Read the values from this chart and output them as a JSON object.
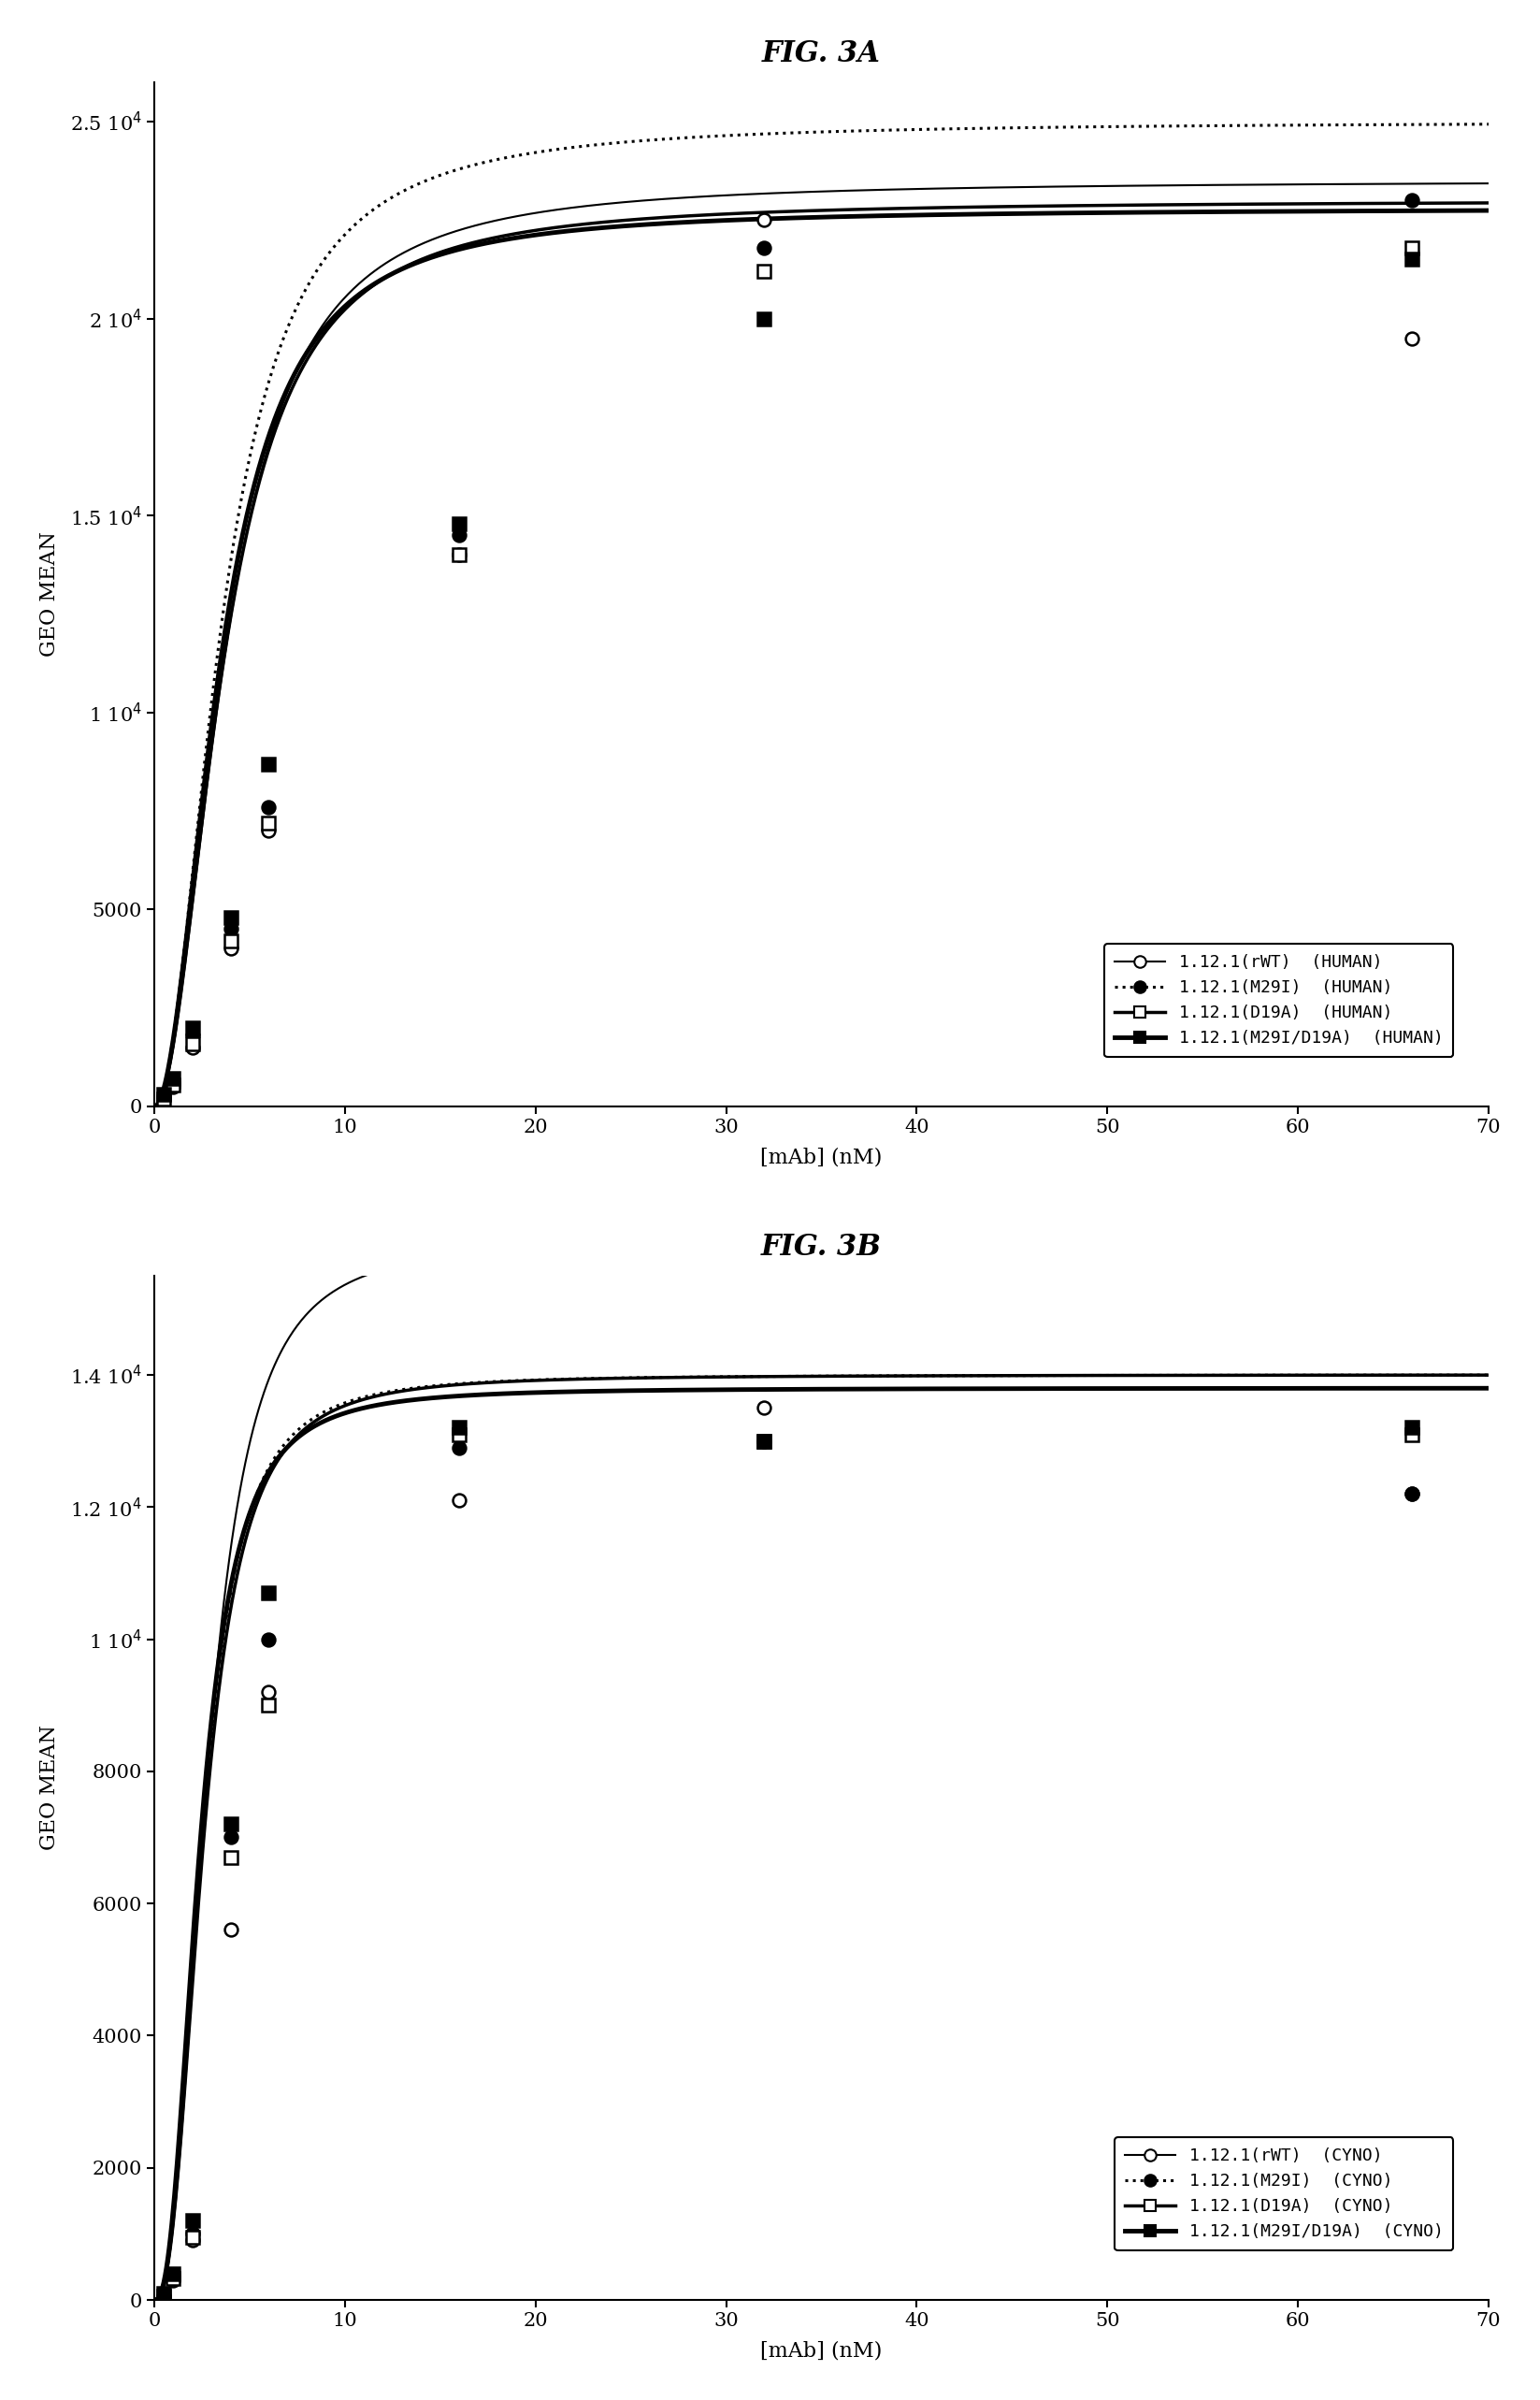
{
  "fig_title_A": "FIG. 3A",
  "fig_title_B": "FIG. 3B",
  "xlabel": "[mAb] (nM)",
  "ylabel": "GEO MEAN",
  "background_color": "#ffffff",
  "panel_A": {
    "xlim": [
      0,
      70
    ],
    "ylim": [
      0,
      26000
    ],
    "yticks": [
      0,
      5000,
      10000,
      15000,
      20000,
      25000
    ],
    "ytick_labels": [
      "0",
      "5000",
      "1 10$^4$",
      "1.5 10$^4$",
      "2 10$^4$",
      "2.5 10$^4$"
    ],
    "xticks": [
      0,
      10,
      20,
      30,
      40,
      50,
      60,
      70
    ],
    "series": [
      {
        "label": "1.12.1(rWT)  (HUMAN)",
        "linestyle": "solid",
        "linewidth": 1.5,
        "marker": "o",
        "markerfacecolor": "white",
        "markeredgecolor": "black",
        "color": "black",
        "Bmax": 23500,
        "Kd": 3.8,
        "n": 2.0,
        "data_x": [
          0.5,
          1.0,
          2.0,
          4.0,
          6.0,
          16.0,
          32.0,
          66.0
        ],
        "data_y": [
          200,
          500,
          1500,
          4000,
          7000,
          14000,
          22500,
          19500
        ]
      },
      {
        "label": "1.12.1(M29I)  (HUMAN)",
        "linestyle": "dotted",
        "linewidth": 2.2,
        "marker": "o",
        "markerfacecolor": "black",
        "markeredgecolor": "black",
        "color": "black",
        "Bmax": 25000,
        "Kd": 3.6,
        "n": 2.0,
        "data_x": [
          0.5,
          1.0,
          2.0,
          4.0,
          6.0,
          16.0,
          32.0,
          66.0
        ],
        "data_y": [
          250,
          600,
          1800,
          4500,
          7600,
          14500,
          21800,
          23000
        ]
      },
      {
        "label": "1.12.1(D19A)  (HUMAN)",
        "linestyle": "solid",
        "linewidth": 2.5,
        "marker": "s",
        "markerfacecolor": "white",
        "markeredgecolor": "black",
        "color": "black",
        "Bmax": 23000,
        "Kd": 3.7,
        "n": 2.0,
        "data_x": [
          0.5,
          1.0,
          2.0,
          4.0,
          6.0,
          16.0,
          32.0,
          66.0
        ],
        "data_y": [
          200,
          550,
          1600,
          4200,
          7200,
          14000,
          21200,
          21800
        ]
      },
      {
        "label": "1.12.1(M29I/D19A)  (HUMAN)",
        "linestyle": "solid",
        "linewidth": 3.5,
        "marker": "s",
        "markerfacecolor": "black",
        "markeredgecolor": "black",
        "color": "black",
        "Bmax": 22800,
        "Kd": 3.5,
        "n": 2.0,
        "data_x": [
          0.5,
          1.0,
          2.0,
          4.0,
          6.0,
          16.0,
          32.0,
          66.0
        ],
        "data_y": [
          300,
          700,
          2000,
          4800,
          8700,
          14800,
          20000,
          21500
        ]
      }
    ]
  },
  "panel_B": {
    "xlim": [
      0,
      70
    ],
    "ylim": [
      0,
      15500
    ],
    "yticks": [
      0,
      2000,
      4000,
      6000,
      8000,
      10000,
      12000,
      14000
    ],
    "ytick_labels": [
      "0",
      "2000",
      "4000",
      "6000",
      "8000",
      "1 10$^4$",
      "1.2 10$^4$",
      "1.4 10$^4$"
    ],
    "xticks": [
      0,
      10,
      20,
      30,
      40,
      50,
      60,
      70
    ],
    "series": [
      {
        "label": "1.12.1(rWT)  (CYNO)",
        "linestyle": "solid",
        "linewidth": 1.5,
        "marker": "o",
        "markerfacecolor": "white",
        "markeredgecolor": "black",
        "color": "black",
        "Bmax": 16000,
        "Kd": 2.8,
        "n": 2.5,
        "data_x": [
          0.5,
          1.0,
          2.0,
          4.0,
          6.0,
          16.0,
          32.0,
          66.0
        ],
        "data_y": [
          50,
          300,
          900,
          5600,
          9200,
          12100,
          13500,
          12200
        ]
      },
      {
        "label": "1.12.1(M29I)  (CYNO)",
        "linestyle": "dotted",
        "linewidth": 2.2,
        "marker": "o",
        "markerfacecolor": "black",
        "markeredgecolor": "black",
        "color": "black",
        "Bmax": 14000,
        "Kd": 2.5,
        "n": 2.5,
        "data_x": [
          0.5,
          1.0,
          2.0,
          4.0,
          6.0,
          16.0,
          32.0,
          66.0
        ],
        "data_y": [
          60,
          350,
          1000,
          7000,
          10000,
          12900,
          13000,
          12200
        ]
      },
      {
        "label": "1.12.1(D19A)  (CYNO)",
        "linestyle": "solid",
        "linewidth": 2.5,
        "marker": "s",
        "markerfacecolor": "white",
        "markeredgecolor": "black",
        "color": "black",
        "Bmax": 14000,
        "Kd": 2.6,
        "n": 2.5,
        "data_x": [
          0.5,
          1.0,
          2.0,
          4.0,
          6.0,
          16.0,
          32.0,
          66.0
        ],
        "data_y": [
          50,
          320,
          950,
          6700,
          9000,
          13100,
          13000,
          13100
        ]
      },
      {
        "label": "1.12.1(M29I/D19A)  (CYNO)",
        "linestyle": "solid",
        "linewidth": 3.5,
        "marker": "s",
        "markerfacecolor": "black",
        "markeredgecolor": "black",
        "color": "black",
        "Bmax": 13800,
        "Kd": 2.4,
        "n": 2.5,
        "data_x": [
          0.5,
          1.0,
          2.0,
          4.0,
          6.0,
          16.0,
          32.0,
          66.0
        ],
        "data_y": [
          100,
          400,
          1200,
          7200,
          10700,
          13200,
          13000,
          13200
        ]
      }
    ]
  }
}
